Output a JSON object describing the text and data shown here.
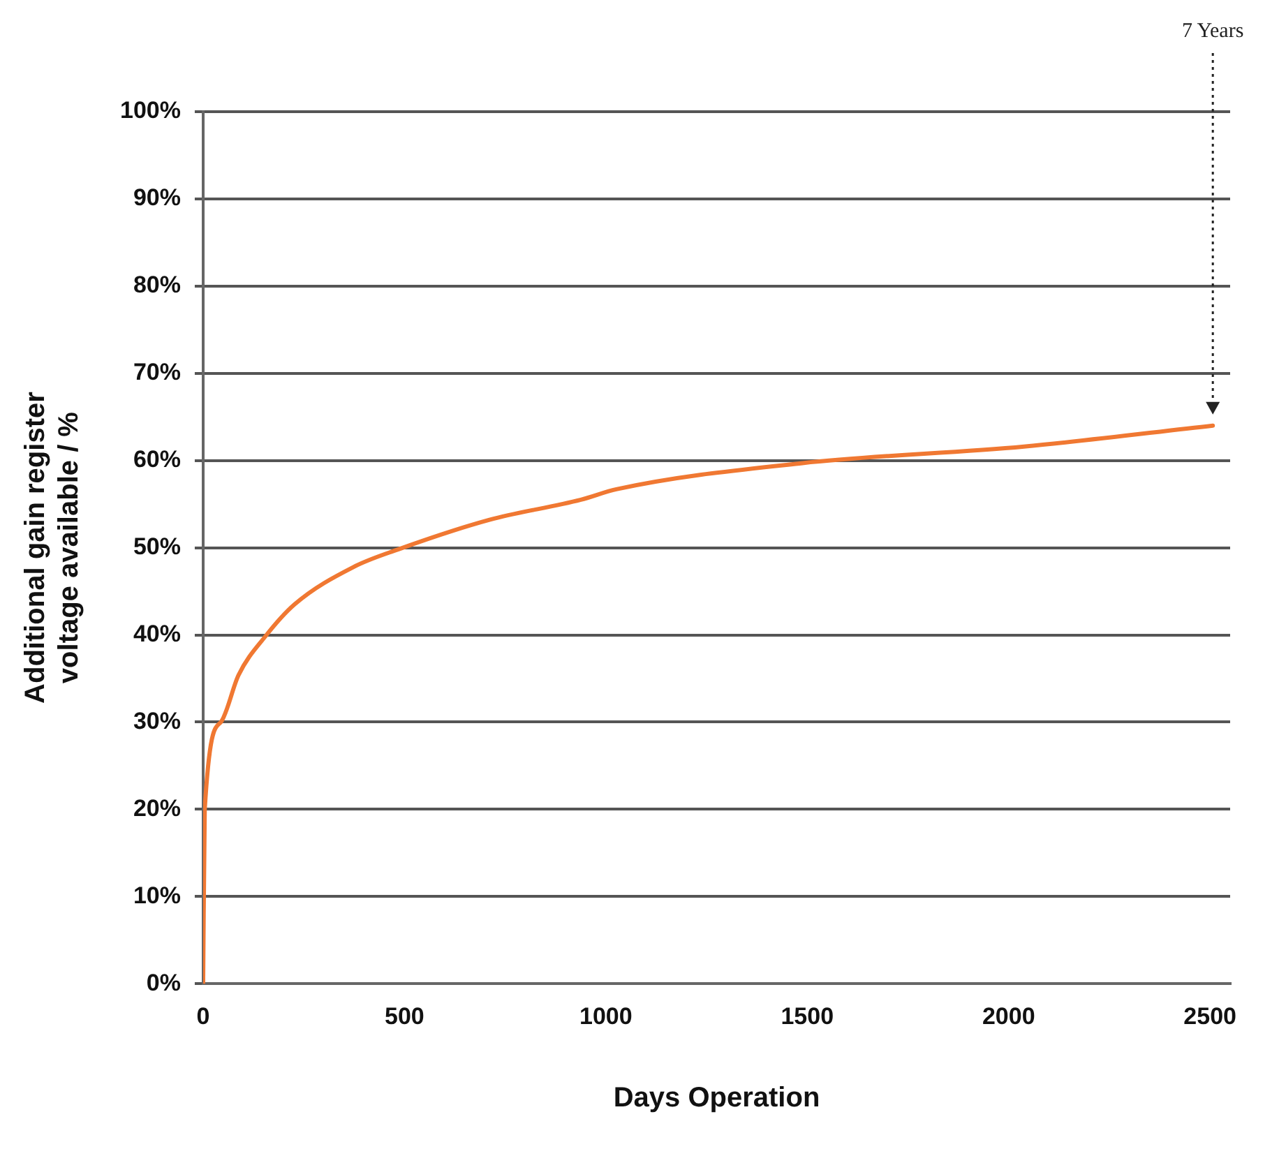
{
  "chart_data": {
    "type": "line",
    "xlabel": "Days Operation",
    "ylabel": "Additional gain register\nvoltage available / %",
    "series": [
      {
        "color": "#f07832",
        "x": [
          0,
          4,
          44,
          88,
          154,
          227,
          374,
          484,
          711,
          938,
          1026,
          1488,
          2038,
          2507
        ],
        "values": [
          0,
          20,
          30,
          35.4,
          39.8,
          43.5,
          47.8,
          49.8,
          53.2,
          55.5,
          56.7,
          59.7,
          61.6,
          64
        ]
      }
    ],
    "xlim": [
      0,
      2550
    ],
    "xticks": [
      0,
      500,
      1000,
      1500,
      2000,
      2500
    ],
    "ylim": [
      0,
      100
    ],
    "yticks": [
      {
        "value": 0,
        "label": "0%"
      },
      {
        "value": 10,
        "label": "10%"
      },
      {
        "value": 20,
        "label": "20%"
      },
      {
        "value": 30,
        "label": "30%"
      },
      {
        "value": 40,
        "label": "40%"
      },
      {
        "value": 50,
        "label": "50%"
      },
      {
        "value": 60,
        "label": "60%"
      },
      {
        "value": 70,
        "label": "70%"
      },
      {
        "value": 80,
        "label": "80%"
      },
      {
        "value": 90,
        "label": "90%"
      },
      {
        "value": 100,
        "label": "100%"
      }
    ],
    "annotations": [
      "7 Years"
    ],
    "grid": "y",
    "legend": false,
    "marker": "none",
    "line_style": "solid"
  }
}
